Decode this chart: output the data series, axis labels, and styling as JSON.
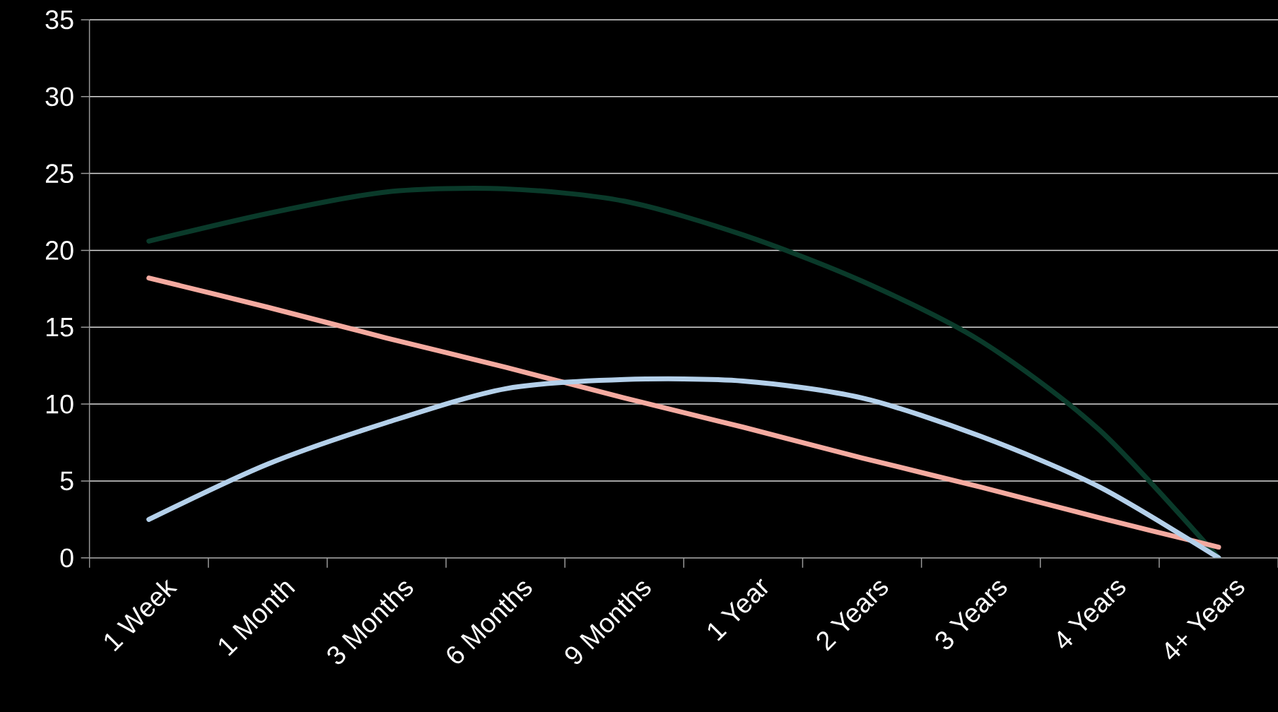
{
  "chart_data": {
    "type": "line",
    "categories": [
      "1 Week",
      "1 Month",
      "3 Months",
      "6 Months",
      "9 Months",
      "1 Year",
      "2 Years",
      "3 Years",
      "4 Years",
      "4+ Years"
    ],
    "series": [
      {
        "color": "#0a3a2a",
        "values": [
          20.6,
          22.4,
          23.8,
          24.0,
          23.2,
          21.0,
          18.0,
          14.1,
          8.3,
          0
        ]
      },
      {
        "color": "#f4aaa0",
        "values": [
          18.2,
          16.3,
          14.3,
          12.4,
          10.4,
          8.5,
          6.5,
          4.6,
          2.6,
          0.7
        ]
      },
      {
        "color": "#b4d0ea",
        "values": [
          2.5,
          6.1,
          8.8,
          11.0,
          11.6,
          11.5,
          10.4,
          7.9,
          4.6,
          0
        ]
      }
    ],
    "ylim": [
      0,
      35
    ],
    "yticks": [
      0,
      5,
      10,
      15,
      20,
      25,
      30,
      35
    ],
    "grid": "y",
    "marker": "none",
    "line_style": "solid"
  }
}
